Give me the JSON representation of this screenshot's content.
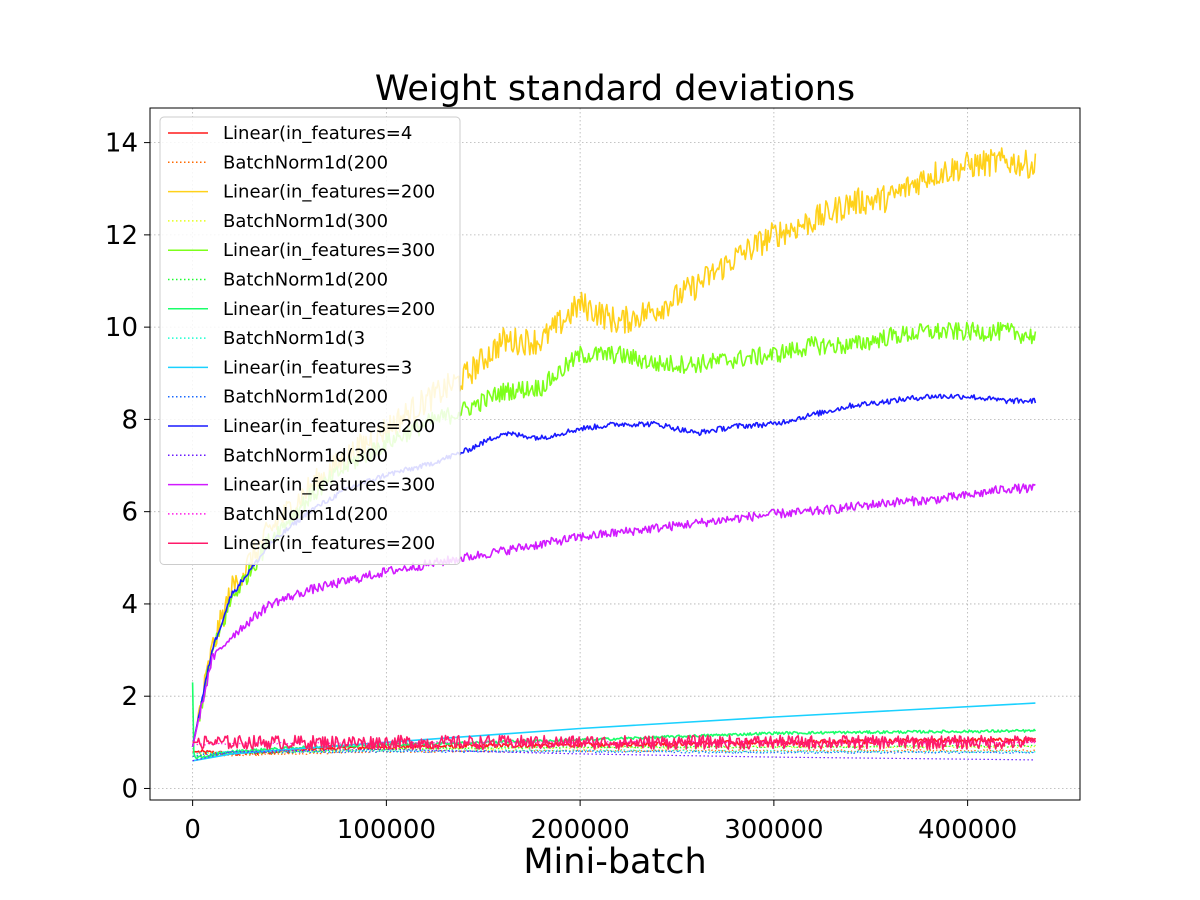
{
  "chart_data": {
    "type": "line",
    "title": "Weight standard deviations",
    "xlabel": "Mini-batch",
    "ylabel": "",
    "xlim": [
      -22000,
      458000
    ],
    "ylim": [
      -0.25,
      14.75
    ],
    "xticks": [
      0,
      100000,
      200000,
      300000,
      400000
    ],
    "xtick_labels": [
      "0",
      "100000",
      "200000",
      "300000",
      "400000"
    ],
    "yticks": [
      0,
      2,
      4,
      6,
      8,
      10,
      12,
      14
    ],
    "ytick_labels": [
      "0",
      "2",
      "4",
      "6",
      "8",
      "10",
      "12",
      "14"
    ],
    "grid": true,
    "legend_position": "upper left",
    "series": [
      {
        "name": "Linear(in_features=4",
        "color": "#ff1a1a",
        "style": "solid",
        "noise": 0.05,
        "x": [
          0,
          20000,
          60000,
          100000,
          200000,
          300000,
          435000
        ],
        "y": [
          0.8,
          0.75,
          0.85,
          0.9,
          0.95,
          1.0,
          1.05
        ]
      },
      {
        "name": "BatchNorm1d(200",
        "color": "#ff6a00",
        "style": "dotted",
        "noise": 0.02,
        "x": [
          0,
          20000,
          100000,
          200000,
          300000,
          435000
        ],
        "y": [
          0.7,
          0.72,
          0.8,
          0.82,
          0.82,
          0.82
        ]
      },
      {
        "name": "Linear(in_features=200",
        "color": "#ffd11a",
        "style": "solid",
        "noise": 0.3,
        "x": [
          0,
          10000,
          20000,
          40000,
          60000,
          80000,
          100000,
          120000,
          140000,
          160000,
          180000,
          200000,
          220000,
          240000,
          260000,
          280000,
          300000,
          320000,
          340000,
          360000,
          380000,
          400000,
          420000,
          435000
        ],
        "y": [
          0.9,
          3.0,
          4.3,
          5.6,
          6.5,
          7.2,
          7.8,
          8.4,
          8.9,
          9.7,
          9.7,
          10.5,
          10.1,
          10.4,
          10.9,
          11.5,
          12.0,
          12.3,
          12.7,
          12.8,
          13.3,
          13.5,
          13.6,
          13.5
        ]
      },
      {
        "name": "BatchNorm1d(300",
        "color": "#e6ff1a",
        "style": "dotted",
        "noise": 0.02,
        "x": [
          0,
          20000,
          100000,
          200000,
          300000,
          435000
        ],
        "y": [
          0.75,
          0.78,
          0.85,
          0.88,
          0.9,
          0.9
        ]
      },
      {
        "name": "Linear(in_features=300",
        "color": "#7dff1a",
        "style": "solid",
        "noise": 0.2,
        "x": [
          0,
          10000,
          20000,
          40000,
          60000,
          80000,
          100000,
          120000,
          140000,
          160000,
          180000,
          200000,
          220000,
          240000,
          260000,
          280000,
          300000,
          320000,
          340000,
          360000,
          380000,
          400000,
          420000,
          435000
        ],
        "y": [
          0.9,
          2.9,
          4.1,
          5.4,
          6.3,
          7.0,
          7.5,
          7.9,
          8.2,
          8.6,
          8.7,
          9.4,
          9.4,
          9.2,
          9.2,
          9.3,
          9.4,
          9.6,
          9.6,
          9.8,
          9.9,
          9.9,
          9.9,
          9.8
        ]
      },
      {
        "name": "BatchNorm1d(200",
        "color": "#1aff2e",
        "style": "dotted",
        "noise": 0.02,
        "x": [
          0,
          20000,
          100000,
          200000,
          300000,
          435000
        ],
        "y": [
          0.7,
          0.75,
          0.85,
          0.9,
          0.9,
          0.92
        ]
      },
      {
        "name": "Linear(in_features=200",
        "color": "#1aff6a",
        "style": "solid",
        "noise": 0.03,
        "x": [
          0,
          500,
          1500,
          20000,
          60000,
          100000,
          200000,
          300000,
          435000
        ],
        "y": [
          2.3,
          0.8,
          0.65,
          0.8,
          0.9,
          0.95,
          1.05,
          1.2,
          1.25
        ]
      },
      {
        "name": "BatchNorm1d(3",
        "color": "#1affd1",
        "style": "dotted",
        "noise": 0.02,
        "x": [
          0,
          20000,
          100000,
          200000,
          300000,
          435000
        ],
        "y": [
          0.75,
          0.8,
          0.82,
          0.82,
          0.8,
          0.8
        ]
      },
      {
        "name": "Linear(in_features=3",
        "color": "#1ad1ff",
        "style": "solid",
        "noise": 0.0,
        "x": [
          0,
          20000,
          50000,
          100000,
          200000,
          300000,
          435000
        ],
        "y": [
          0.6,
          0.75,
          0.85,
          1.0,
          1.3,
          1.55,
          1.85
        ]
      },
      {
        "name": "BatchNorm1d(200",
        "color": "#1a6aff",
        "style": "dotted",
        "noise": 0.02,
        "x": [
          0,
          20000,
          100000,
          200000,
          300000,
          435000
        ],
        "y": [
          0.7,
          0.78,
          0.8,
          0.8,
          0.78,
          0.78
        ]
      },
      {
        "name": "Linear(in_features=200",
        "color": "#1a1aff",
        "style": "solid",
        "noise": 0.06,
        "x": [
          0,
          10000,
          20000,
          40000,
          60000,
          80000,
          100000,
          120000,
          140000,
          160000,
          180000,
          200000,
          220000,
          240000,
          260000,
          280000,
          300000,
          320000,
          340000,
          360000,
          380000,
          400000,
          420000,
          435000
        ],
        "y": [
          0.9,
          3.0,
          4.2,
          5.3,
          6.0,
          6.5,
          6.8,
          7.0,
          7.3,
          7.7,
          7.6,
          7.8,
          7.9,
          7.9,
          7.7,
          7.85,
          7.9,
          8.1,
          8.3,
          8.4,
          8.5,
          8.5,
          8.4,
          8.4
        ]
      },
      {
        "name": "BatchNorm1d(300",
        "color": "#6a1aff",
        "style": "dotted",
        "noise": 0.0,
        "x": [
          0,
          20000,
          100000,
          200000,
          300000,
          435000
        ],
        "y": [
          0.6,
          0.8,
          0.85,
          0.75,
          0.68,
          0.62
        ]
      },
      {
        "name": "Linear(in_features=300",
        "color": "#d11aff",
        "style": "solid",
        "noise": 0.1,
        "x": [
          0,
          10000,
          20000,
          40000,
          60000,
          80000,
          100000,
          120000,
          140000,
          160000,
          180000,
          200000,
          220000,
          240000,
          260000,
          280000,
          300000,
          320000,
          340000,
          360000,
          380000,
          400000,
          420000,
          435000
        ],
        "y": [
          0.9,
          2.8,
          3.3,
          4.0,
          4.3,
          4.5,
          4.7,
          4.85,
          5.0,
          5.15,
          5.3,
          5.45,
          5.55,
          5.65,
          5.75,
          5.85,
          5.95,
          6.0,
          6.1,
          6.2,
          6.25,
          6.35,
          6.5,
          6.5
        ]
      },
      {
        "name": "BatchNorm1d(200",
        "color": "#ff1ae6",
        "style": "dotted",
        "noise": 0.02,
        "x": [
          0,
          20000,
          100000,
          200000,
          300000,
          435000
        ],
        "y": [
          0.95,
          0.97,
          1.0,
          1.0,
          1.0,
          1.0
        ]
      },
      {
        "name": "Linear(in_features=200",
        "color": "#ff1a6a",
        "style": "solid",
        "noise": 0.15,
        "x": [
          0,
          20000,
          100000,
          200000,
          300000,
          435000
        ],
        "y": [
          1.0,
          1.0,
          1.0,
          1.0,
          1.0,
          1.0
        ]
      }
    ]
  }
}
